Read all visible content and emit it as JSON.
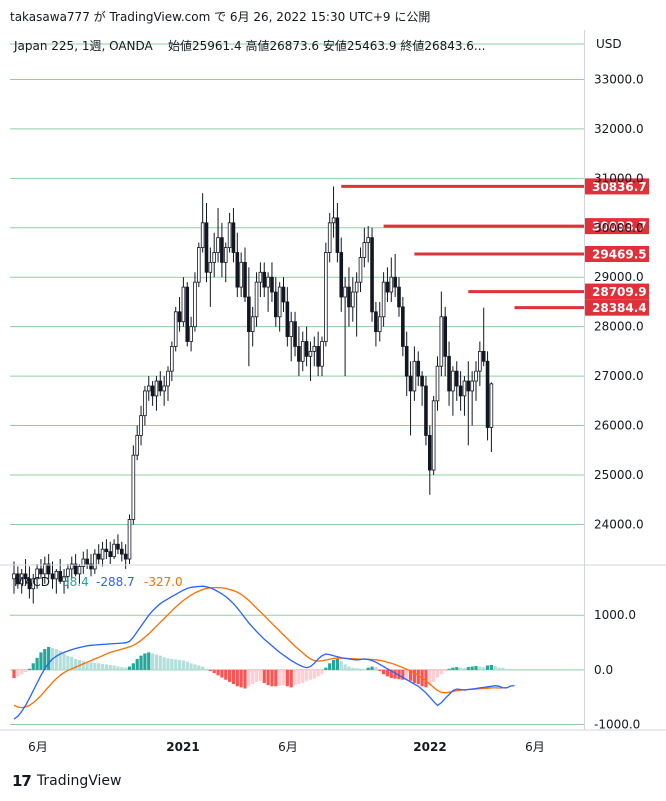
{
  "header": {
    "publish_line": "takasawa777 が TradingView.com で 6月 26, 2022 15:30 UTC+9 に公開"
  },
  "footer": {
    "brand": "TradingView",
    "logo_glyph": "17"
  },
  "chart_data": {
    "type": "candlestick",
    "symbol_line": "Japan 225, 1週, OANDA",
    "ohlc_line": "始値25961.4  高値26873.6  安値25463.9  終値26843.6...",
    "currency": "USD",
    "ylim": [
      23200,
      34000
    ],
    "y_ticks": [
      "33000.0",
      "32000.0",
      "31000.0",
      "30000.0",
      "29000.0",
      "28000.0",
      "27000.0",
      "26000.0",
      "25000.0",
      "24000.0"
    ],
    "x_ticks": [
      "6月",
      "2021",
      "6月",
      "2022",
      "6月"
    ],
    "up_color": "#26a69a",
    "down_color": "#131722",
    "price_levels": [
      {
        "label": "30836.7",
        "value": 30836.7,
        "start_week": 85
      },
      {
        "label": "30033.7",
        "value": 30033.7,
        "start_week": 96
      },
      {
        "label": "29469.5",
        "value": 29469.5,
        "start_week": 104
      },
      {
        "label": "28709.9",
        "value": 28709.9,
        "start_week": 118
      },
      {
        "label": "28384.4",
        "value": 28384.4,
        "start_week": 130
      }
    ],
    "level_color": "#e0303a",
    "candles": [
      {
        "o": 22900,
        "h": 23250,
        "l": 22600,
        "c": 23000
      },
      {
        "o": 23000,
        "h": 23150,
        "l": 22700,
        "c": 22800
      },
      {
        "o": 22800,
        "h": 23100,
        "l": 22600,
        "c": 23000
      },
      {
        "o": 23000,
        "h": 23300,
        "l": 22800,
        "c": 22900
      },
      {
        "o": 22900,
        "h": 23150,
        "l": 22500,
        "c": 22700
      },
      {
        "o": 22700,
        "h": 23000,
        "l": 22400,
        "c": 22900
      },
      {
        "o": 22900,
        "h": 23200,
        "l": 22700,
        "c": 23100
      },
      {
        "o": 23100,
        "h": 23300,
        "l": 22900,
        "c": 23000
      },
      {
        "o": 23000,
        "h": 23350,
        "l": 22800,
        "c": 23200
      },
      {
        "o": 23200,
        "h": 23400,
        "l": 22900,
        "c": 23000
      },
      {
        "o": 23000,
        "h": 23250,
        "l": 22700,
        "c": 22900
      },
      {
        "o": 22900,
        "h": 23100,
        "l": 22600,
        "c": 23050
      },
      {
        "o": 23050,
        "h": 23300,
        "l": 22800,
        "c": 22850
      },
      {
        "o": 22850,
        "h": 23100,
        "l": 22600,
        "c": 22950
      },
      {
        "o": 22950,
        "h": 23200,
        "l": 22700,
        "c": 23100
      },
      {
        "o": 23100,
        "h": 23350,
        "l": 22900,
        "c": 23200
      },
      {
        "o": 23200,
        "h": 23400,
        "l": 22950,
        "c": 23000
      },
      {
        "o": 23000,
        "h": 23200,
        "l": 22800,
        "c": 23150
      },
      {
        "o": 23150,
        "h": 23450,
        "l": 23000,
        "c": 23300
      },
      {
        "o": 23300,
        "h": 23500,
        "l": 23100,
        "c": 23200
      },
      {
        "o": 23200,
        "h": 23400,
        "l": 22950,
        "c": 23100
      },
      {
        "o": 23100,
        "h": 23500,
        "l": 23000,
        "c": 23400
      },
      {
        "o": 23400,
        "h": 23600,
        "l": 23200,
        "c": 23300
      },
      {
        "o": 23300,
        "h": 23650,
        "l": 23150,
        "c": 23500
      },
      {
        "o": 23500,
        "h": 23700,
        "l": 23300,
        "c": 23450
      },
      {
        "o": 23450,
        "h": 23650,
        "l": 23200,
        "c": 23350
      },
      {
        "o": 23350,
        "h": 23700,
        "l": 23300,
        "c": 23600
      },
      {
        "o": 23600,
        "h": 23800,
        "l": 23400,
        "c": 23500
      },
      {
        "o": 23500,
        "h": 23650,
        "l": 23250,
        "c": 23400
      },
      {
        "o": 23400,
        "h": 23600,
        "l": 23100,
        "c": 23300
      },
      {
        "o": 23300,
        "h": 24200,
        "l": 23200,
        "c": 24100
      },
      {
        "o": 24100,
        "h": 25600,
        "l": 24000,
        "c": 25400
      },
      {
        "o": 25400,
        "h": 26000,
        "l": 25300,
        "c": 25800
      },
      {
        "o": 25800,
        "h": 26400,
        "l": 25600,
        "c": 26200
      },
      {
        "o": 26200,
        "h": 26800,
        "l": 26000,
        "c": 26700
      },
      {
        "o": 26700,
        "h": 27000,
        "l": 26500,
        "c": 26800
      },
      {
        "o": 26800,
        "h": 26900,
        "l": 26400,
        "c": 26600
      },
      {
        "o": 26600,
        "h": 27000,
        "l": 26300,
        "c": 26900
      },
      {
        "o": 26900,
        "h": 27100,
        "l": 26600,
        "c": 26700
      },
      {
        "o": 26700,
        "h": 27000,
        "l": 26400,
        "c": 26800
      },
      {
        "o": 26800,
        "h": 27200,
        "l": 26500,
        "c": 27100
      },
      {
        "o": 27100,
        "h": 27700,
        "l": 26900,
        "c": 27600
      },
      {
        "o": 27600,
        "h": 28400,
        "l": 27500,
        "c": 28300
      },
      {
        "o": 28300,
        "h": 28600,
        "l": 27900,
        "c": 28100
      },
      {
        "o": 28100,
        "h": 29000,
        "l": 28000,
        "c": 28800
      },
      {
        "o": 28800,
        "h": 28900,
        "l": 27600,
        "c": 27700
      },
      {
        "o": 27700,
        "h": 28200,
        "l": 27500,
        "c": 28000
      },
      {
        "o": 28000,
        "h": 29100,
        "l": 27900,
        "c": 28900
      },
      {
        "o": 28900,
        "h": 29700,
        "l": 28800,
        "c": 29600
      },
      {
        "o": 29600,
        "h": 30700,
        "l": 29500,
        "c": 30100
      },
      {
        "o": 30100,
        "h": 30500,
        "l": 28900,
        "c": 29100
      },
      {
        "o": 29100,
        "h": 29600,
        "l": 28400,
        "c": 29300
      },
      {
        "o": 29300,
        "h": 29900,
        "l": 29000,
        "c": 29500
      },
      {
        "o": 29500,
        "h": 30400,
        "l": 29300,
        "c": 29800
      },
      {
        "o": 29800,
        "h": 30100,
        "l": 29000,
        "c": 29300
      },
      {
        "o": 29300,
        "h": 29700,
        "l": 28900,
        "c": 29600
      },
      {
        "o": 29600,
        "h": 30300,
        "l": 29500,
        "c": 30100
      },
      {
        "o": 30100,
        "h": 30400,
        "l": 29300,
        "c": 29500
      },
      {
        "o": 29500,
        "h": 29900,
        "l": 28600,
        "c": 28800
      },
      {
        "o": 28800,
        "h": 29500,
        "l": 28600,
        "c": 29300
      },
      {
        "o": 29300,
        "h": 29600,
        "l": 28500,
        "c": 28600
      },
      {
        "o": 28600,
        "h": 29200,
        "l": 27200,
        "c": 27900
      },
      {
        "o": 27900,
        "h": 28400,
        "l": 27600,
        "c": 28200
      },
      {
        "o": 28200,
        "h": 29100,
        "l": 28000,
        "c": 28900
      },
      {
        "o": 28900,
        "h": 29300,
        "l": 28600,
        "c": 29100
      },
      {
        "o": 29100,
        "h": 29300,
        "l": 28600,
        "c": 28800
      },
      {
        "o": 28800,
        "h": 29100,
        "l": 28300,
        "c": 29000
      },
      {
        "o": 29000,
        "h": 29300,
        "l": 28500,
        "c": 28700
      },
      {
        "o": 28700,
        "h": 29000,
        "l": 28000,
        "c": 28200
      },
      {
        "o": 28200,
        "h": 28900,
        "l": 27900,
        "c": 28800
      },
      {
        "o": 28800,
        "h": 29000,
        "l": 28300,
        "c": 28500
      },
      {
        "o": 28500,
        "h": 28800,
        "l": 27600,
        "c": 27800
      },
      {
        "o": 27800,
        "h": 28300,
        "l": 27300,
        "c": 28100
      },
      {
        "o": 28100,
        "h": 28300,
        "l": 27400,
        "c": 27600
      },
      {
        "o": 27600,
        "h": 28000,
        "l": 27000,
        "c": 27300
      },
      {
        "o": 27300,
        "h": 27900,
        "l": 27100,
        "c": 27700
      },
      {
        "o": 27700,
        "h": 28000,
        "l": 27200,
        "c": 27400
      },
      {
        "o": 27400,
        "h": 27700,
        "l": 26900,
        "c": 27500
      },
      {
        "o": 27500,
        "h": 27800,
        "l": 27200,
        "c": 27600
      },
      {
        "o": 27600,
        "h": 27900,
        "l": 27000,
        "c": 27200
      },
      {
        "o": 27200,
        "h": 27800,
        "l": 27000,
        "c": 27700
      },
      {
        "o": 27700,
        "h": 29700,
        "l": 27600,
        "c": 29500
      },
      {
        "o": 29500,
        "h": 30300,
        "l": 29300,
        "c": 30100
      },
      {
        "o": 30100,
        "h": 30836,
        "l": 29800,
        "c": 30200
      },
      {
        "o": 30200,
        "h": 30500,
        "l": 29300,
        "c": 29500
      },
      {
        "o": 29500,
        "h": 29800,
        "l": 28300,
        "c": 28600
      },
      {
        "o": 28600,
        "h": 29000,
        "l": 27000,
        "c": 28800
      },
      {
        "o": 28800,
        "h": 29200,
        "l": 28000,
        "c": 28400
      },
      {
        "o": 28400,
        "h": 29000,
        "l": 28100,
        "c": 28700
      },
      {
        "o": 28700,
        "h": 29100,
        "l": 27800,
        "c": 28900
      },
      {
        "o": 28900,
        "h": 29600,
        "l": 28700,
        "c": 29400
      },
      {
        "o": 29400,
        "h": 30000,
        "l": 29200,
        "c": 29700
      },
      {
        "o": 29700,
        "h": 30034,
        "l": 29300,
        "c": 29800
      },
      {
        "o": 29800,
        "h": 30000,
        "l": 28100,
        "c": 28300
      },
      {
        "o": 28300,
        "h": 28500,
        "l": 27600,
        "c": 27900
      },
      {
        "o": 27900,
        "h": 28500,
        "l": 27700,
        "c": 28200
      },
      {
        "o": 28200,
        "h": 29100,
        "l": 28000,
        "c": 28900
      },
      {
        "o": 28900,
        "h": 29200,
        "l": 28500,
        "c": 28700
      },
      {
        "o": 28700,
        "h": 29400,
        "l": 28500,
        "c": 29000
      },
      {
        "o": 29000,
        "h": 29470,
        "l": 28600,
        "c": 28800
      },
      {
        "o": 28800,
        "h": 29000,
        "l": 28200,
        "c": 28400
      },
      {
        "o": 28400,
        "h": 28600,
        "l": 27400,
        "c": 27600
      },
      {
        "o": 27600,
        "h": 27900,
        "l": 26600,
        "c": 27000
      },
      {
        "o": 27000,
        "h": 27300,
        "l": 25800,
        "c": 26700
      },
      {
        "o": 26700,
        "h": 27600,
        "l": 26500,
        "c": 27300
      },
      {
        "o": 27300,
        "h": 27500,
        "l": 26800,
        "c": 27000
      },
      {
        "o": 27000,
        "h": 27100,
        "l": 26400,
        "c": 26800
      },
      {
        "o": 26800,
        "h": 27000,
        "l": 25600,
        "c": 25800
      },
      {
        "o": 25800,
        "h": 26000,
        "l": 24600,
        "c": 25100
      },
      {
        "o": 25100,
        "h": 26600,
        "l": 25000,
        "c": 26500
      },
      {
        "o": 26500,
        "h": 27400,
        "l": 26300,
        "c": 27200
      },
      {
        "o": 27200,
        "h": 28710,
        "l": 27000,
        "c": 28200
      },
      {
        "o": 28200,
        "h": 28400,
        "l": 27000,
        "c": 27400
      },
      {
        "o": 27400,
        "h": 27700,
        "l": 26400,
        "c": 26700
      },
      {
        "o": 26700,
        "h": 27200,
        "l": 26200,
        "c": 27100
      },
      {
        "o": 27100,
        "h": 27300,
        "l": 26500,
        "c": 26800
      },
      {
        "o": 26800,
        "h": 27100,
        "l": 26300,
        "c": 26600
      },
      {
        "o": 26600,
        "h": 27000,
        "l": 26200,
        "c": 26900
      },
      {
        "o": 26900,
        "h": 27300,
        "l": 25600,
        "c": 26700
      },
      {
        "o": 26700,
        "h": 27100,
        "l": 26000,
        "c": 26900
      },
      {
        "o": 26900,
        "h": 27300,
        "l": 26500,
        "c": 27100
      },
      {
        "o": 27100,
        "h": 27700,
        "l": 26800,
        "c": 27500
      },
      {
        "o": 27500,
        "h": 28384,
        "l": 27200,
        "c": 27300
      },
      {
        "o": 27300,
        "h": 27500,
        "l": 25700,
        "c": 25960
      },
      {
        "o": 25961.4,
        "h": 26873.6,
        "l": 25463.9,
        "c": 26843.6
      }
    ],
    "macd": {
      "label": "MACD",
      "hist_value": "38.4",
      "macd_value": "-288.7",
      "signal_value": "-327.0",
      "ylim": [
        -1100,
        1900
      ],
      "y_ticks": [
        "1000.0",
        "0.0",
        "-1000.0"
      ],
      "macd_color": "#2962ff",
      "signal_color": "#ff6d00",
      "hist_value_color": "#26a69a",
      "hist": [
        -150,
        -120,
        -80,
        -40,
        20,
        120,
        220,
        320,
        380,
        420,
        400,
        380,
        350,
        300,
        260,
        240,
        200,
        180,
        160,
        150,
        140,
        130,
        120,
        110,
        100,
        90,
        80,
        60,
        50,
        40,
        60,
        120,
        200,
        260,
        300,
        320,
        300,
        280,
        260,
        230,
        210,
        200,
        190,
        180,
        170,
        150,
        120,
        100,
        80,
        60,
        20,
        -20,
        -60,
        -100,
        -140,
        -180,
        -220,
        -260,
        -300,
        -320,
        -340,
        -300,
        -260,
        -220,
        -200,
        -240,
        -280,
        -300,
        -300,
        -290,
        -280,
        -300,
        -320,
        -280,
        -260,
        -240,
        -200,
        -180,
        -160,
        -120,
        -80,
        40,
        120,
        180,
        200,
        160,
        100,
        60,
        40,
        30,
        20,
        10,
        40,
        60,
        50,
        -20,
        -80,
        -120,
        -150,
        -160,
        -170,
        -180,
        -170,
        -200,
        -240,
        -260,
        -300,
        -320,
        -280,
        -220,
        -140,
        -80,
        -20,
        20,
        40,
        50,
        40,
        30,
        50,
        60,
        70,
        60,
        50,
        80,
        90,
        70,
        40,
        38.4
      ],
      "macd_line": [
        -900,
        -850,
        -760,
        -650,
        -520,
        -380,
        -240,
        -100,
        20,
        120,
        200,
        250,
        290,
        320,
        345,
        370,
        390,
        410,
        425,
        440,
        450,
        455,
        460,
        465,
        470,
        475,
        480,
        485,
        490,
        495,
        520,
        600,
        700,
        800,
        900,
        1000,
        1080,
        1150,
        1210,
        1260,
        1300,
        1340,
        1380,
        1420,
        1460,
        1490,
        1510,
        1520,
        1525,
        1530,
        1520,
        1500,
        1470,
        1430,
        1390,
        1340,
        1280,
        1210,
        1130,
        1040,
        950,
        860,
        780,
        700,
        630,
        560,
        500,
        440,
        380,
        320,
        270,
        220,
        170,
        130,
        90,
        60,
        40,
        60,
        120,
        200,
        260,
        290,
        280,
        260,
        240,
        220,
        210,
        200,
        190,
        180,
        190,
        200,
        190,
        170,
        140,
        100,
        60,
        20,
        -20,
        -60,
        -100,
        -140,
        -180,
        -220,
        -260,
        -300,
        -360,
        -420,
        -500,
        -580,
        -650,
        -600,
        -520,
        -450,
        -380,
        -350,
        -360,
        -370,
        -360,
        -350,
        -340,
        -330,
        -320,
        -310,
        -300,
        -290,
        -300,
        -330,
        -330,
        -295,
        -288.7
      ],
      "signal_line": [
        -650,
        -680,
        -690,
        -680,
        -650,
        -600,
        -540,
        -470,
        -390,
        -310,
        -230,
        -160,
        -100,
        -50,
        -10,
        20,
        50,
        80,
        110,
        140,
        170,
        200,
        230,
        260,
        290,
        320,
        340,
        360,
        380,
        400,
        420,
        450,
        490,
        540,
        600,
        660,
        730,
        800,
        870,
        940,
        1010,
        1080,
        1150,
        1210,
        1270,
        1320,
        1370,
        1410,
        1440,
        1470,
        1490,
        1500,
        1505,
        1505,
        1500,
        1490,
        1470,
        1450,
        1420,
        1380,
        1330,
        1270,
        1200,
        1130,
        1060,
        990,
        920,
        850,
        780,
        710,
        640,
        570,
        500,
        430,
        370,
        310,
        250,
        200,
        170,
        160,
        165,
        180,
        195,
        210,
        215,
        215,
        212,
        208,
        205,
        200,
        198,
        196,
        194,
        190,
        185,
        175,
        160,
        140,
        120,
        95,
        70,
        40,
        10,
        -20,
        -60,
        -100,
        -150,
        -200,
        -260,
        -320,
        -380,
        -410,
        -420,
        -410,
        -395,
        -380,
        -370,
        -365,
        -360,
        -355,
        -350,
        -345,
        -340,
        -335,
        -330,
        -330,
        -332,
        -330,
        -327
      ]
    }
  }
}
